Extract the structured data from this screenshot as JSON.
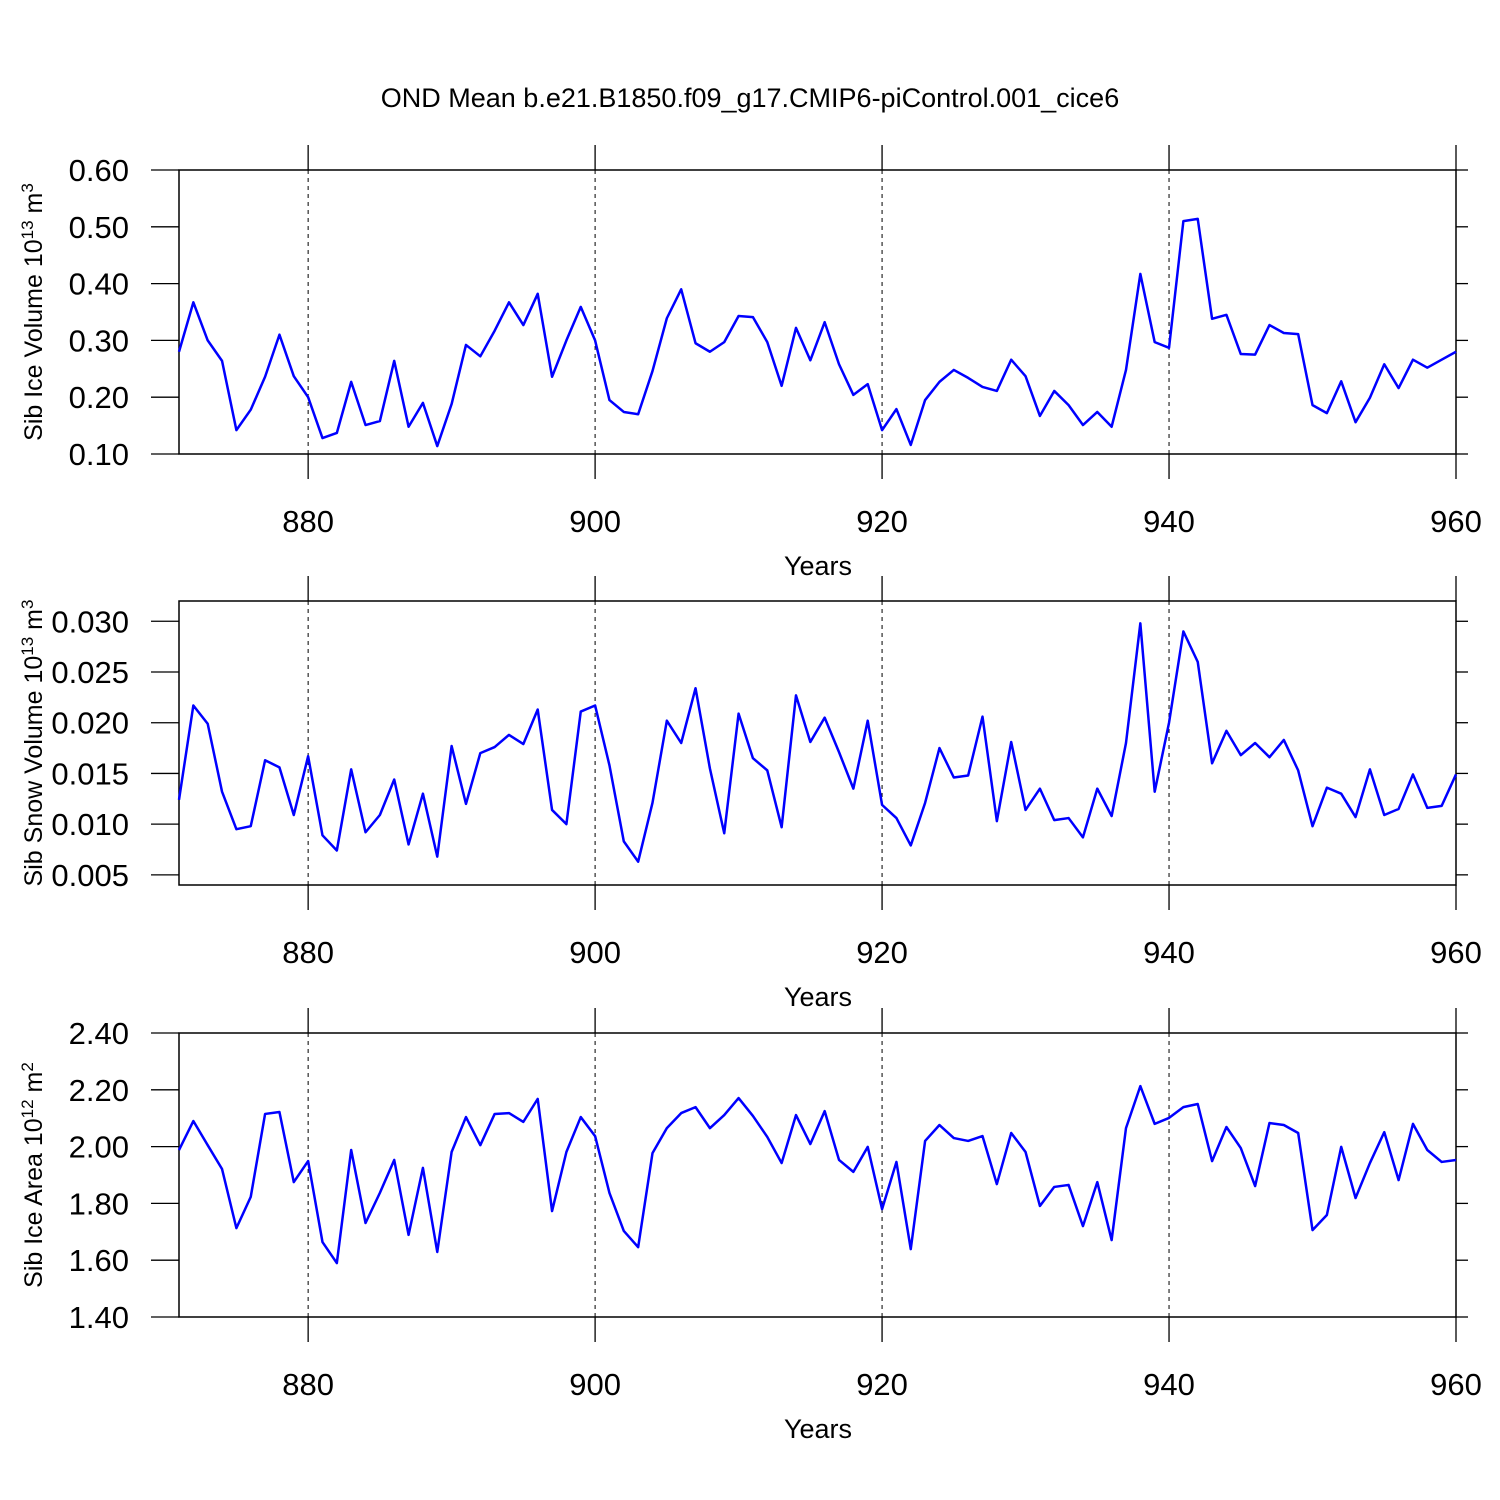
{
  "title": "OND Mean b.e21.B1850.f09_g17.CMIP6-piControl.001_cice6",
  "chart_data": [
    {
      "type": "line",
      "ylabel": [
        "Sib Ice Volume 10",
        "13",
        " m",
        "3"
      ],
      "xlabel": "Years",
      "color": "#0000ff",
      "xgrid": true,
      "xlim": [
        871,
        960
      ],
      "xticks": [
        880,
        900,
        920,
        940,
        960
      ],
      "ylim": [
        0.1,
        0.6
      ],
      "yticks": [
        {
          "value": 0.1,
          "label": "0.10"
        },
        {
          "value": 0.2,
          "label": "0.20"
        },
        {
          "value": 0.3,
          "label": "0.30"
        },
        {
          "value": 0.4,
          "label": "0.40"
        },
        {
          "value": 0.5,
          "label": "0.50"
        },
        {
          "value": 0.6,
          "label": "0.60"
        }
      ],
      "x": [
        871,
        872,
        873,
        874,
        875,
        876,
        877,
        878,
        879,
        880,
        881,
        882,
        883,
        884,
        885,
        886,
        887,
        888,
        889,
        890,
        891,
        892,
        893,
        894,
        895,
        896,
        897,
        898,
        899,
        900,
        901,
        902,
        903,
        904,
        905,
        906,
        907,
        908,
        909,
        910,
        911,
        912,
        913,
        914,
        915,
        916,
        917,
        918,
        919,
        920,
        921,
        922,
        923,
        924,
        925,
        926,
        927,
        928,
        929,
        930,
        931,
        932,
        933,
        934,
        935,
        936,
        937,
        938,
        939,
        940,
        941,
        942,
        943,
        944,
        945,
        946,
        947,
        948,
        949,
        950,
        951,
        952,
        953,
        954,
        955,
        956,
        957,
        958,
        959,
        960
      ],
      "values": [
        0.28,
        0.367,
        0.3,
        0.264,
        0.142,
        0.178,
        0.236,
        0.31,
        0.237,
        0.2,
        0.128,
        0.137,
        0.227,
        0.151,
        0.158,
        0.264,
        0.148,
        0.19,
        0.114,
        0.188,
        0.292,
        0.272,
        0.317,
        0.367,
        0.327,
        0.382,
        0.236,
        0.3,
        0.359,
        0.3,
        0.195,
        0.174,
        0.17,
        0.246,
        0.339,
        0.39,
        0.295,
        0.28,
        0.297,
        0.343,
        0.341,
        0.297,
        0.22,
        0.322,
        0.265,
        0.332,
        0.258,
        0.204,
        0.223,
        0.142,
        0.179,
        0.116,
        0.195,
        0.227,
        0.248,
        0.234,
        0.218,
        0.211,
        0.266,
        0.237,
        0.167,
        0.211,
        0.186,
        0.151,
        0.174,
        0.148,
        0.248,
        0.417,
        0.297,
        0.287,
        0.51,
        0.514,
        0.338,
        0.345,
        0.276,
        0.275,
        0.327,
        0.313,
        0.311,
        0.186,
        0.172,
        0.228,
        0.156,
        0.199,
        0.258,
        0.216,
        0.266,
        0.252,
        0.266,
        0.28
      ]
    },
    {
      "type": "line",
      "ylabel": [
        "Sib Snow Volume 10",
        "13",
        " m",
        "3"
      ],
      "xlabel": "Years",
      "color": "#0000ff",
      "xgrid": true,
      "xlim": [
        871,
        960
      ],
      "xticks": [
        880,
        900,
        920,
        940,
        960
      ],
      "ylim": [
        0.004,
        0.032
      ],
      "yticks": [
        {
          "value": 0.005,
          "label": "0.005"
        },
        {
          "value": 0.01,
          "label": "0.010"
        },
        {
          "value": 0.015,
          "label": "0.015"
        },
        {
          "value": 0.02,
          "label": "0.020"
        },
        {
          "value": 0.025,
          "label": "0.025"
        },
        {
          "value": 0.03,
          "label": "0.030"
        }
      ],
      "x": [
        871,
        872,
        873,
        874,
        875,
        876,
        877,
        878,
        879,
        880,
        881,
        882,
        883,
        884,
        885,
        886,
        887,
        888,
        889,
        890,
        891,
        892,
        893,
        894,
        895,
        896,
        897,
        898,
        899,
        900,
        901,
        902,
        903,
        904,
        905,
        906,
        907,
        908,
        909,
        910,
        911,
        912,
        913,
        914,
        915,
        916,
        917,
        918,
        919,
        920,
        921,
        922,
        923,
        924,
        925,
        926,
        927,
        928,
        929,
        930,
        931,
        932,
        933,
        934,
        935,
        936,
        937,
        938,
        939,
        940,
        941,
        942,
        943,
        944,
        945,
        946,
        947,
        948,
        949,
        950,
        951,
        952,
        953,
        954,
        955,
        956,
        957,
        958,
        959,
        960
      ],
      "values": [
        0.0124,
        0.0217,
        0.0199,
        0.0132,
        0.0095,
        0.0098,
        0.0163,
        0.0156,
        0.0109,
        0.0167,
        0.0089,
        0.0074,
        0.0154,
        0.0092,
        0.0109,
        0.0144,
        0.008,
        0.013,
        0.0068,
        0.0177,
        0.012,
        0.017,
        0.0176,
        0.0188,
        0.0179,
        0.0213,
        0.0114,
        0.01,
        0.0211,
        0.0217,
        0.0158,
        0.0083,
        0.0063,
        0.0121,
        0.0202,
        0.018,
        0.0234,
        0.0155,
        0.0091,
        0.0209,
        0.0165,
        0.0153,
        0.0097,
        0.0227,
        0.0181,
        0.0205,
        0.0171,
        0.0135,
        0.0202,
        0.0119,
        0.0106,
        0.0079,
        0.0121,
        0.0175,
        0.0146,
        0.0148,
        0.0206,
        0.0103,
        0.0181,
        0.0114,
        0.0135,
        0.0104,
        0.0106,
        0.0087,
        0.0135,
        0.0108,
        0.018,
        0.0298,
        0.0132,
        0.02,
        0.029,
        0.026,
        0.016,
        0.0192,
        0.0168,
        0.018,
        0.0166,
        0.0183,
        0.0153,
        0.0098,
        0.0136,
        0.013,
        0.0107,
        0.0154,
        0.0109,
        0.0115,
        0.0149,
        0.0116,
        0.0118,
        0.0149
      ]
    },
    {
      "type": "line",
      "ylabel": [
        "Sib Ice Area 10",
        "12",
        " m",
        "2"
      ],
      "xlabel": "Years",
      "color": "#0000ff",
      "xgrid": true,
      "xlim": [
        871,
        960
      ],
      "xticks": [
        880,
        900,
        920,
        940,
        960
      ],
      "ylim": [
        1.4,
        2.4
      ],
      "yticks": [
        {
          "value": 1.4,
          "label": "1.40"
        },
        {
          "value": 1.6,
          "label": "1.60"
        },
        {
          "value": 1.8,
          "label": "1.80"
        },
        {
          "value": 2.0,
          "label": "2.00"
        },
        {
          "value": 2.2,
          "label": "2.20"
        },
        {
          "value": 2.4,
          "label": "2.40"
        }
      ],
      "x": [
        871,
        872,
        873,
        874,
        875,
        876,
        877,
        878,
        879,
        880,
        881,
        882,
        883,
        884,
        885,
        886,
        887,
        888,
        889,
        890,
        891,
        892,
        893,
        894,
        895,
        896,
        897,
        898,
        899,
        900,
        901,
        902,
        903,
        904,
        905,
        906,
        907,
        908,
        909,
        910,
        911,
        912,
        913,
        914,
        915,
        916,
        917,
        918,
        919,
        920,
        921,
        922,
        923,
        924,
        925,
        926,
        927,
        928,
        929,
        930,
        931,
        932,
        933,
        934,
        935,
        936,
        937,
        938,
        939,
        940,
        941,
        942,
        943,
        944,
        945,
        946,
        947,
        948,
        949,
        950,
        951,
        952,
        953,
        954,
        955,
        956,
        957,
        958,
        959,
        960
      ],
      "values": [
        1.988,
        2.09,
        2.005,
        1.921,
        1.713,
        1.823,
        2.115,
        2.122,
        1.875,
        1.949,
        1.664,
        1.59,
        1.988,
        1.731,
        1.837,
        1.953,
        1.689,
        1.925,
        1.629,
        1.981,
        2.104,
        2.005,
        2.115,
        2.118,
        2.087,
        2.168,
        1.773,
        1.981,
        2.104,
        2.037,
        1.837,
        1.703,
        1.646,
        1.977,
        2.065,
        2.118,
        2.139,
        2.065,
        2.111,
        2.171,
        2.108,
        2.034,
        1.942,
        2.111,
        2.009,
        2.125,
        1.953,
        1.911,
        1.999,
        1.78,
        1.946,
        1.639,
        2.02,
        2.076,
        2.03,
        2.02,
        2.037,
        1.868,
        2.048,
        1.981,
        1.791,
        1.858,
        1.865,
        1.72,
        1.875,
        1.671,
        2.065,
        2.213,
        2.08,
        2.101,
        2.139,
        2.15,
        1.949,
        2.069,
        1.995,
        1.861,
        2.083,
        2.076,
        2.048,
        1.706,
        1.759,
        1.999,
        1.819,
        1.942,
        2.051,
        1.882,
        2.08,
        1.988,
        1.946,
        1.953
      ]
    }
  ]
}
